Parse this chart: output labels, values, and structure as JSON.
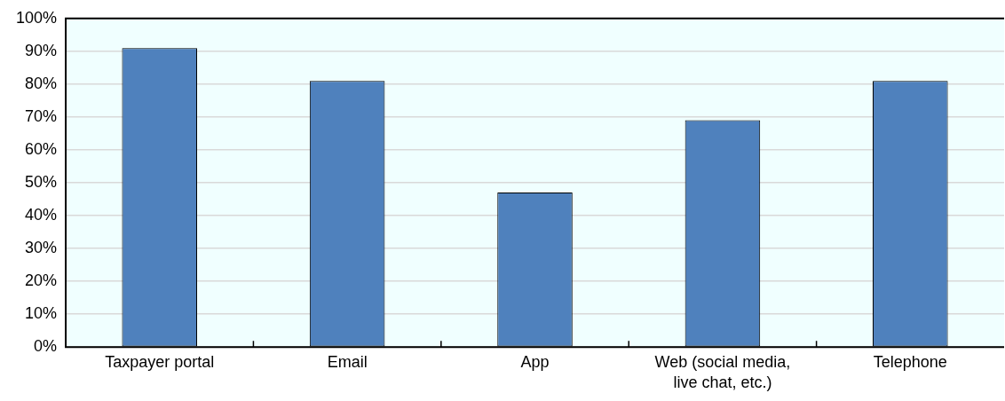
{
  "chart_data": {
    "type": "bar",
    "categories": [
      "Taxpayer portal",
      "Email",
      "App",
      "Web (social media, live chat, etc.)",
      "Telephone"
    ],
    "values": [
      91,
      81,
      47,
      69,
      81
    ],
    "color": "#4f81bd",
    "ylim": [
      0,
      100
    ],
    "yticks": [
      {
        "value": 0,
        "label": "0%"
      },
      {
        "value": 10,
        "label": "10%"
      },
      {
        "value": 20,
        "label": "20%"
      },
      {
        "value": 30,
        "label": "30%"
      },
      {
        "value": 40,
        "label": "40%"
      },
      {
        "value": 50,
        "label": "50%"
      },
      {
        "value": 60,
        "label": "60%"
      },
      {
        "value": 70,
        "label": "70%"
      },
      {
        "value": 80,
        "label": "80%"
      },
      {
        "value": 90,
        "label": "90%"
      },
      {
        "value": 100,
        "label": "100%"
      }
    ],
    "grid": "y"
  }
}
